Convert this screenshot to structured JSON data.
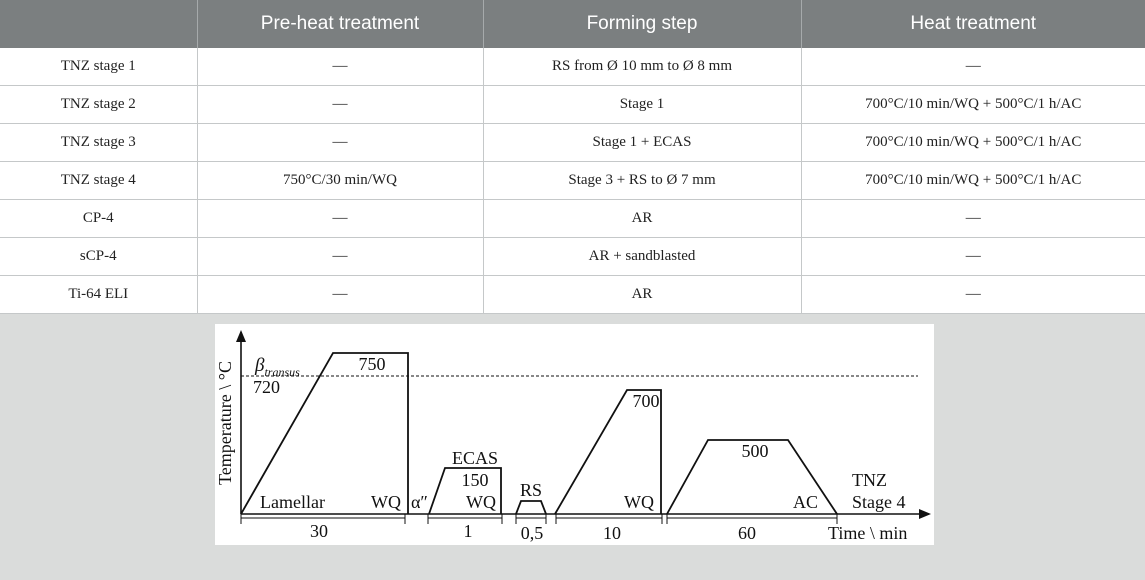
{
  "table": {
    "headers": [
      "",
      "Pre-heat treatment",
      "Forming step",
      "Heat treatment"
    ],
    "rows": [
      [
        "TNZ stage 1",
        "—",
        "RS from Ø 10 mm to Ø 8 mm",
        "—"
      ],
      [
        "TNZ stage 2",
        "—",
        "Stage 1",
        "700°C/10 min/WQ + 500°C/1 h/AC"
      ],
      [
        "TNZ stage 3",
        "—",
        "Stage 1 + ECAS",
        "700°C/10 min/WQ + 500°C/1 h/AC"
      ],
      [
        "TNZ stage 4",
        "750°C/30 min/WQ",
        "Stage 3 + RS to Ø 7 mm",
        "700°C/10 min/WQ + 500°C/1 h/AC"
      ],
      [
        "CP-4",
        "—",
        "AR",
        "—"
      ],
      [
        "sCP-4",
        "—",
        "AR + sandblasted",
        "—"
      ],
      [
        "Ti-64 ELI",
        "—",
        "AR",
        "—"
      ]
    ]
  },
  "diagram": {
    "y_axis_label": "Temperature \\ °C",
    "x_axis_label": "Time \\ min",
    "beta_symbol": "β",
    "beta_subscript": "transus",
    "beta_transus_value": "720",
    "segments": [
      {
        "peak": "750",
        "start_label": "Lamellar",
        "end_label": "WQ",
        "duration": "30"
      },
      {
        "title": "ECAS",
        "peak": "150",
        "end_label": "WQ",
        "start_label": "α″",
        "duration": "1"
      },
      {
        "title": "RS",
        "duration": "0,5"
      },
      {
        "peak": "700",
        "end_label": "WQ",
        "duration": "10"
      },
      {
        "peak": "500",
        "end_label": "AC",
        "duration": "60"
      }
    ],
    "stage_label_1": "TNZ",
    "stage_label_2": "Stage 4"
  }
}
